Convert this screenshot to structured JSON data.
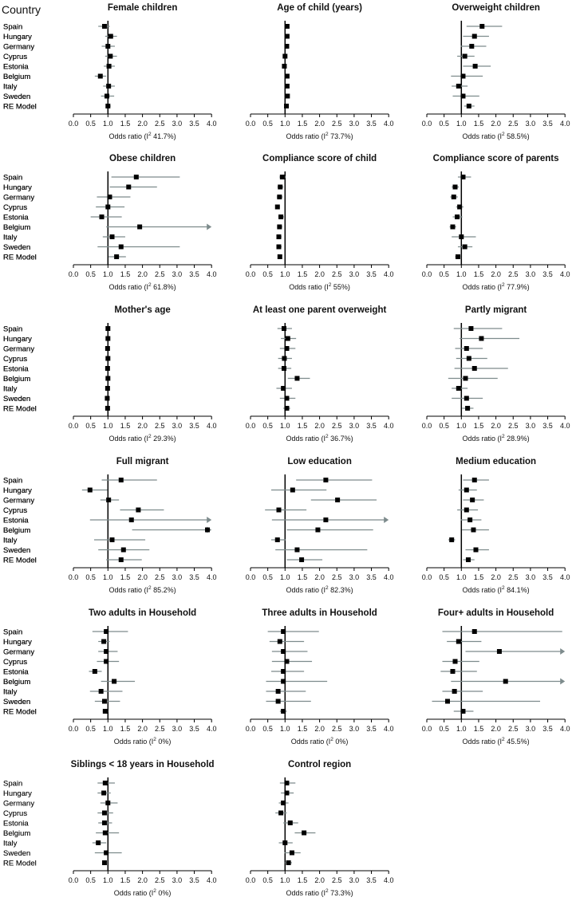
{
  "header": {
    "country_label": "Country"
  },
  "chart_data": {
    "type": "forest",
    "countries": [
      "Spain",
      "Hungary",
      "Germany",
      "Cyprus",
      "Estonia",
      "Belgium",
      "Italy",
      "Sweden",
      "RE Model"
    ],
    "axis": {
      "xlim": [
        0,
        4
      ],
      "ticks": [
        "0.0",
        "0.5",
        "1.0",
        "1.5",
        "2.0",
        "2.5",
        "3.0",
        "3.5",
        "4.0"
      ],
      "reference_line": 1.0
    },
    "xlabel_prefix": "Odds ratio (I",
    "xlabel_sup": "2",
    "panels": [
      {
        "title": "Female children",
        "i2": " 41.7%)",
        "or": [
          0.9,
          1.08,
          1.0,
          1.07,
          1.03,
          0.78,
          1.02,
          0.97,
          1.0
        ],
        "lo": [
          0.72,
          0.92,
          0.82,
          0.92,
          0.88,
          0.62,
          0.86,
          0.8,
          0.93
        ],
        "hi": [
          1.05,
          1.26,
          1.2,
          1.26,
          1.2,
          0.95,
          1.2,
          1.18,
          1.08
        ]
      },
      {
        "title": "Age of child (years)",
        "i2": " 73.7%)",
        "or": [
          1.06,
          1.06,
          1.05,
          1.0,
          0.98,
          1.06,
          1.06,
          1.07,
          1.04
        ],
        "lo": [
          1.02,
          1.02,
          1.01,
          0.96,
          0.94,
          1.02,
          1.02,
          1.03,
          1.01
        ],
        "hi": [
          1.1,
          1.1,
          1.09,
          1.04,
          1.02,
          1.1,
          1.1,
          1.11,
          1.07
        ]
      },
      {
        "title": "Overweight children",
        "i2": " 58.5%)",
        "or": [
          1.6,
          1.38,
          1.3,
          1.1,
          1.4,
          1.05,
          0.92,
          1.05,
          1.22
        ],
        "lo": [
          1.15,
          1.05,
          0.98,
          0.88,
          1.05,
          0.7,
          0.72,
          0.75,
          1.08
        ],
        "hi": [
          2.18,
          1.8,
          1.72,
          1.38,
          1.85,
          1.62,
          1.18,
          1.52,
          1.38
        ]
      },
      {
        "title": "Obese children",
        "i2": " 61.8%)",
        "or": [
          1.82,
          1.6,
          1.05,
          1.0,
          0.82,
          1.92,
          1.12,
          1.38,
          1.25
        ],
        "lo": [
          1.1,
          1.05,
          0.68,
          0.65,
          0.5,
          0.95,
          0.85,
          0.7,
          1.02
        ],
        "hi": [
          3.08,
          2.42,
          1.65,
          1.48,
          1.4,
          4.0,
          1.5,
          3.08,
          1.52
        ],
        "arrow": [
          false,
          false,
          false,
          false,
          false,
          true,
          false,
          false,
          false
        ]
      },
      {
        "title": "Compliance score of child",
        "i2": " 55%)",
        "or": [
          0.92,
          0.86,
          0.84,
          0.78,
          0.88,
          0.84,
          0.82,
          0.82,
          0.85
        ],
        "lo": [
          0.84,
          0.78,
          0.76,
          0.72,
          0.8,
          0.77,
          0.75,
          0.75,
          0.81
        ],
        "hi": [
          1.02,
          0.95,
          0.93,
          0.85,
          0.97,
          0.92,
          0.9,
          0.9,
          0.89
        ]
      },
      {
        "title": "Compliance score of parents",
        "i2": " 77.9%)",
        "or": [
          1.05,
          0.82,
          0.78,
          0.95,
          0.88,
          0.75,
          1.0,
          1.1,
          0.9
        ],
        "lo": [
          0.9,
          0.72,
          0.68,
          0.85,
          0.75,
          0.66,
          0.72,
          0.9,
          0.82
        ],
        "hi": [
          1.28,
          0.93,
          0.9,
          1.06,
          1.03,
          0.85,
          1.42,
          1.32,
          0.99
        ]
      },
      {
        "title": "Mother's age",
        "i2": " 29.3%)",
        "or": [
          1.0,
          1.0,
          0.99,
          1.0,
          0.99,
          1.0,
          0.99,
          0.98,
          0.99
        ],
        "lo": [
          0.98,
          0.98,
          0.97,
          0.98,
          0.97,
          0.98,
          0.97,
          0.96,
          0.98
        ],
        "hi": [
          1.02,
          1.02,
          1.01,
          1.02,
          1.01,
          1.02,
          1.01,
          1.0,
          1.0
        ]
      },
      {
        "title": "At least one parent overweight",
        "i2": " 36.7%)",
        "or": [
          0.97,
          1.08,
          1.05,
          0.98,
          0.97,
          1.35,
          0.95,
          1.05,
          1.05
        ],
        "lo": [
          0.78,
          0.88,
          0.85,
          0.8,
          0.8,
          1.08,
          0.75,
          0.85,
          0.95
        ],
        "hi": [
          1.2,
          1.32,
          1.3,
          1.2,
          1.18,
          1.72,
          1.2,
          1.3,
          1.15
        ]
      },
      {
        "title": "Partly migrant",
        "i2": " 28.9%)",
        "or": [
          1.28,
          1.58,
          1.15,
          1.22,
          1.38,
          1.12,
          0.92,
          1.15,
          1.18
        ],
        "lo": [
          0.78,
          0.95,
          0.82,
          0.85,
          0.8,
          0.62,
          0.72,
          0.72,
          1.02
        ],
        "hi": [
          2.18,
          2.68,
          1.62,
          1.75,
          2.35,
          2.05,
          1.18,
          1.62,
          1.35
        ]
      },
      {
        "title": "Full migrant",
        "i2": " 85.2%)",
        "or": [
          1.38,
          0.48,
          1.02,
          1.88,
          1.68,
          3.88,
          1.12,
          1.45,
          1.38
        ],
        "lo": [
          0.82,
          0.25,
          0.78,
          1.35,
          0.48,
          1.7,
          0.6,
          0.72,
          0.95
        ],
        "hi": [
          2.42,
          0.98,
          1.32,
          2.62,
          4.0,
          4.0,
          2.08,
          2.2,
          1.98
        ],
        "arrow": [
          false,
          false,
          false,
          false,
          true,
          true,
          false,
          false,
          false
        ]
      },
      {
        "title": "Low education",
        "i2": " 82.3%)",
        "or": [
          2.18,
          1.22,
          2.52,
          0.82,
          2.18,
          1.95,
          0.78,
          1.35,
          1.48
        ],
        "lo": [
          1.32,
          0.6,
          1.75,
          0.42,
          0.62,
          1.05,
          0.6,
          0.72,
          1.05
        ],
        "hi": [
          3.52,
          2.2,
          3.65,
          1.62,
          4.0,
          3.55,
          1.02,
          3.38,
          2.08
        ],
        "arrow": [
          false,
          false,
          false,
          false,
          true,
          false,
          false,
          false,
          false
        ]
      },
      {
        "title": "Medium education",
        "i2": " 84.1%)",
        "or": [
          1.38,
          1.15,
          1.32,
          1.15,
          1.25,
          1.35,
          0.72,
          1.42,
          1.2
        ],
        "lo": [
          1.05,
          0.92,
          1.05,
          0.88,
          0.98,
          1.02,
          0.62,
          1.12,
          1.05
        ],
        "hi": [
          1.8,
          1.45,
          1.65,
          1.48,
          1.58,
          1.8,
          0.82,
          1.8,
          1.38
        ]
      },
      {
        "title": "Two adults in Household",
        "i2": " 0%)",
        "or": [
          0.95,
          0.88,
          0.95,
          0.95,
          0.62,
          1.18,
          0.8,
          0.9,
          0.92
        ],
        "lo": [
          0.55,
          0.72,
          0.72,
          0.68,
          0.45,
          0.8,
          0.48,
          0.62,
          0.85
        ],
        "hi": [
          1.58,
          1.05,
          1.28,
          1.32,
          0.82,
          1.78,
          1.42,
          1.35,
          1.0
        ]
      },
      {
        "title": "Three adults in Household",
        "i2": " 0%)",
        "or": [
          0.95,
          0.85,
          0.95,
          1.05,
          0.95,
          0.95,
          0.8,
          0.8,
          0.95
        ],
        "lo": [
          0.5,
          0.55,
          0.62,
          0.62,
          0.6,
          0.45,
          0.45,
          0.45,
          0.85
        ],
        "hi": [
          1.98,
          1.55,
          1.65,
          1.78,
          1.55,
          2.22,
          1.6,
          1.75,
          1.05
        ]
      },
      {
        "title": "Four+ adults in Household",
        "i2": " 45.5%)",
        "or": [
          1.38,
          0.92,
          2.1,
          0.82,
          0.75,
          2.28,
          0.8,
          0.6,
          1.05
        ],
        "lo": [
          0.45,
          0.58,
          1.12,
          0.45,
          0.4,
          0.7,
          0.45,
          0.15,
          0.78
        ],
        "hi": [
          3.92,
          1.58,
          4.0,
          1.52,
          1.45,
          4.0,
          1.62,
          3.28,
          1.35
        ],
        "arrow": [
          false,
          false,
          true,
          false,
          false,
          true,
          false,
          false,
          false
        ]
      },
      {
        "title": "Siblings < 18 years in Household",
        "i2": " 0%)",
        "or": [
          0.92,
          0.88,
          1.0,
          0.9,
          0.9,
          0.92,
          0.72,
          0.95,
          0.9
        ],
        "lo": [
          0.7,
          0.7,
          0.78,
          0.7,
          0.72,
          0.65,
          0.55,
          0.62,
          0.85
        ],
        "hi": [
          1.2,
          1.08,
          1.28,
          1.15,
          1.12,
          1.32,
          0.95,
          1.4,
          0.95
        ]
      },
      {
        "title": "Control region",
        "i2": " 73.3%)",
        "or": [
          1.05,
          1.05,
          0.95,
          0.88,
          1.15,
          1.55,
          1.0,
          1.2,
          1.1
        ],
        "lo": [
          0.85,
          0.88,
          0.82,
          0.72,
          0.95,
          1.28,
          0.82,
          0.98,
          1.0
        ],
        "hi": [
          1.3,
          1.25,
          1.1,
          1.05,
          1.38,
          1.88,
          1.22,
          1.45,
          1.2
        ]
      }
    ]
  }
}
